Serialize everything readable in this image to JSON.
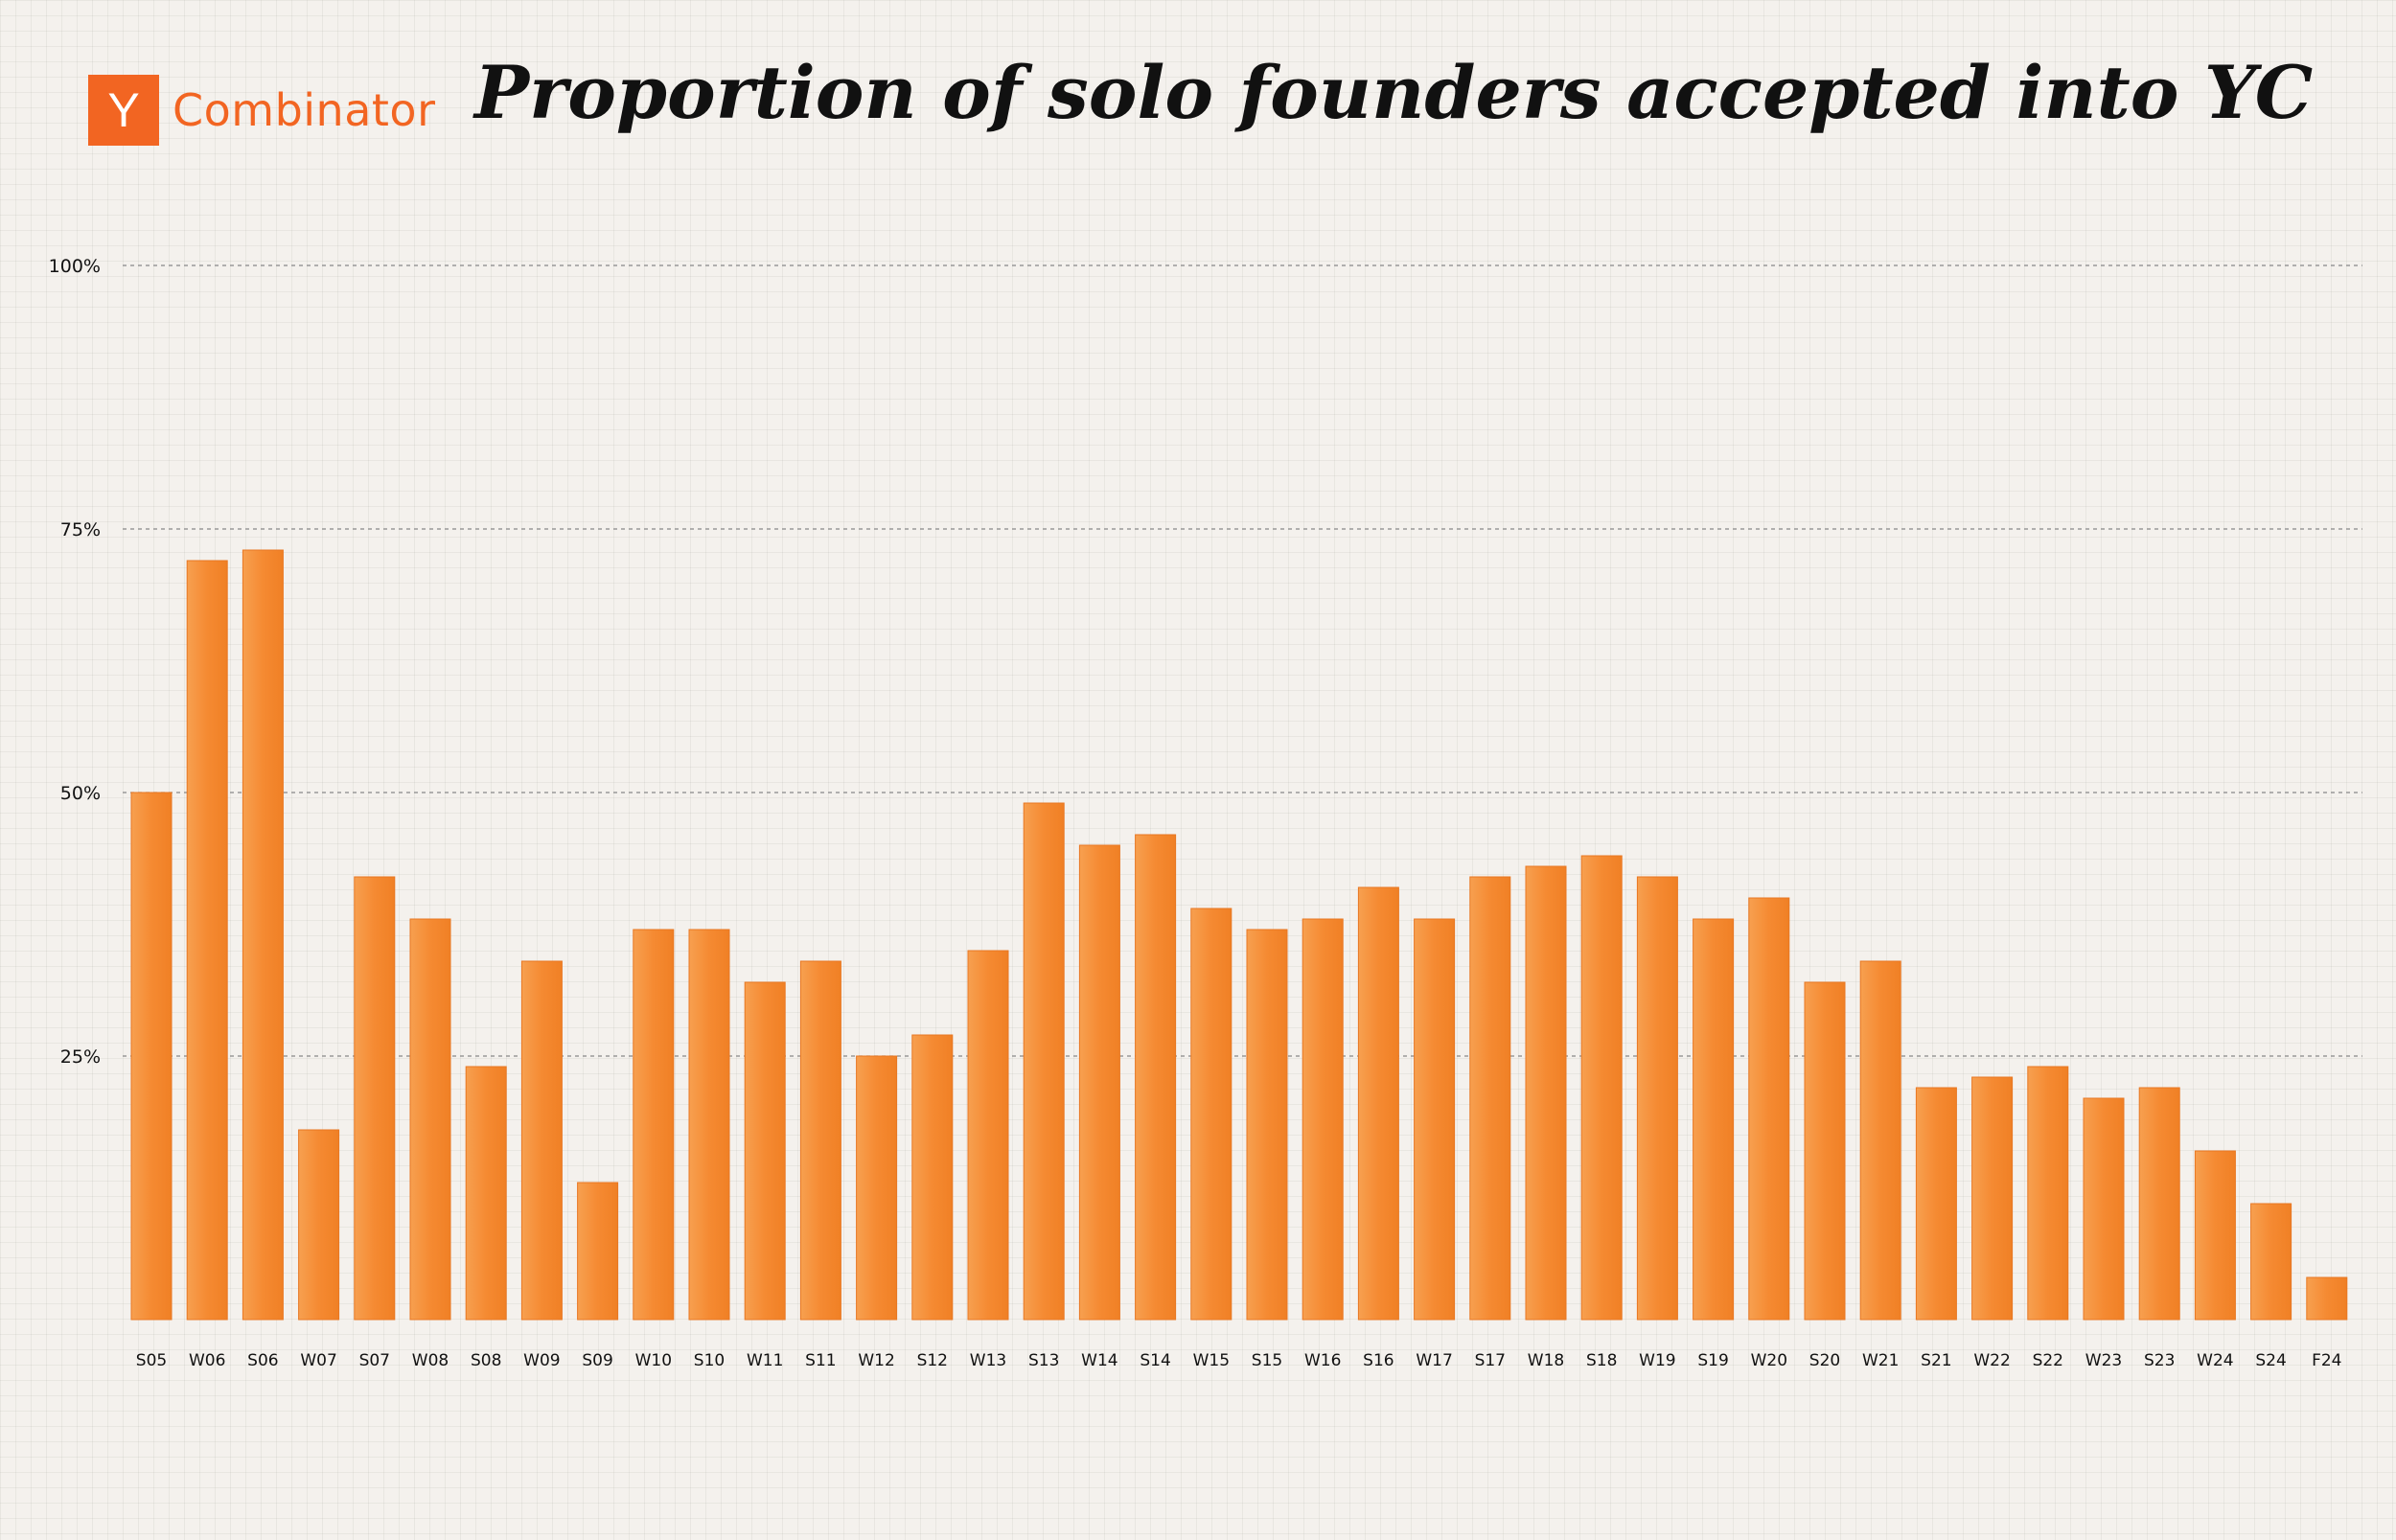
{
  "header": {
    "logo_letter": "Y",
    "logo_text": "Combinator",
    "title": "Proportion of solo founders accepted into YC"
  },
  "colors": {
    "bar": "#f58a32",
    "bar_edge": "#e87722",
    "brand": "#f26522",
    "grid": "#888888"
  },
  "chart_data": {
    "type": "bar",
    "title": "Proportion of solo founders accepted into YC",
    "xlabel": "",
    "ylabel": "",
    "ylim": [
      0,
      100
    ],
    "yticks": [
      25,
      50,
      75,
      100
    ],
    "ytick_labels": [
      "25%",
      "50%",
      "75%",
      "100%"
    ],
    "grid": "horizontal dashed",
    "categories": [
      "S05",
      "W06",
      "S06",
      "W07",
      "S07",
      "W08",
      "S08",
      "W09",
      "S09",
      "W10",
      "S10",
      "W11",
      "S11",
      "W12",
      "S12",
      "W13",
      "S13",
      "W14",
      "S14",
      "W15",
      "S15",
      "W16",
      "S16",
      "W17",
      "S17",
      "W18",
      "S18",
      "W19",
      "S19",
      "W20",
      "S20",
      "W21",
      "S21",
      "W22",
      "S22",
      "W23",
      "S23",
      "W24",
      "S24",
      "F24"
    ],
    "values": [
      50,
      72,
      73,
      18,
      42,
      38,
      24,
      34,
      13,
      37,
      37,
      32,
      34,
      25,
      27,
      35,
      49,
      45,
      46,
      39,
      37,
      38,
      41,
      38,
      42,
      43,
      44,
      42,
      38,
      40,
      32,
      34,
      22,
      23,
      24,
      21,
      22,
      16,
      11,
      4
    ]
  }
}
